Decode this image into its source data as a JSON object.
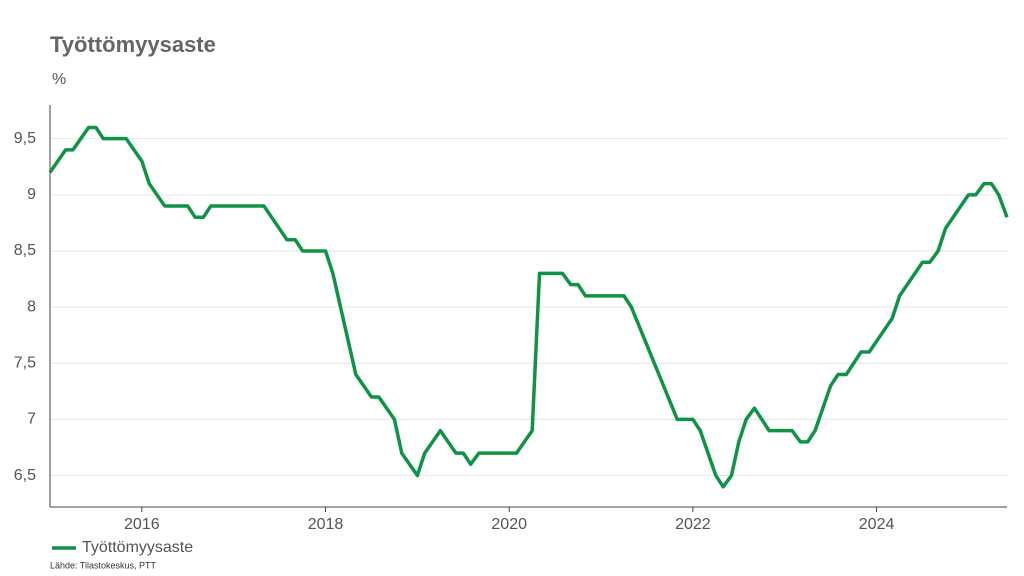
{
  "chart_data": {
    "type": "line",
    "title": "Työttömyysaste",
    "y_unit": "%",
    "source": "Lähde: Tilastokeskus, PTT",
    "grid": true,
    "legend": "bottom-left",
    "x": [
      2015.0,
      2015.17,
      2015.25,
      2015.42,
      2015.5,
      2015.58,
      2015.83,
      2016.0,
      2016.08,
      2016.25,
      2016.5,
      2016.58,
      2016.67,
      2016.75,
      2017.33,
      2017.58,
      2017.67,
      2017.75,
      2018.0,
      2018.08,
      2018.33,
      2018.5,
      2018.58,
      2018.75,
      2018.83,
      2019.0,
      2019.08,
      2019.25,
      2019.42,
      2019.5,
      2019.58,
      2019.67,
      2020.08,
      2020.25,
      2020.33,
      2020.58,
      2020.67,
      2020.75,
      2020.83,
      2021.25,
      2021.33,
      2021.83,
      2022.0,
      2022.08,
      2022.25,
      2022.33,
      2022.42,
      2022.5,
      2022.58,
      2022.67,
      2022.83,
      2023.08,
      2023.17,
      2023.25,
      2023.33,
      2023.5,
      2023.58,
      2023.67,
      2023.83,
      2023.92,
      2024.17,
      2024.25,
      2024.5,
      2024.58,
      2024.67,
      2024.75,
      2025.0,
      2025.08,
      2025.17,
      2025.25,
      2025.33,
      2025.42
    ],
    "series": [
      {
        "name": "Työttömyysaste",
        "color": "#0f9447",
        "values": [
          9.2,
          9.4,
          9.4,
          9.6,
          9.6,
          9.5,
          9.5,
          9.3,
          9.1,
          8.9,
          8.9,
          8.8,
          8.8,
          8.9,
          8.9,
          8.6,
          8.6,
          8.5,
          8.5,
          8.3,
          7.4,
          7.2,
          7.2,
          7.0,
          6.7,
          6.5,
          6.7,
          6.9,
          6.7,
          6.7,
          6.6,
          6.7,
          6.7,
          6.9,
          8.3,
          8.3,
          8.2,
          8.2,
          8.1,
          8.1,
          8.0,
          7.0,
          7.0,
          6.9,
          6.5,
          6.4,
          6.5,
          6.8,
          7.0,
          7.1,
          6.9,
          6.9,
          6.8,
          6.8,
          6.9,
          7.3,
          7.4,
          7.4,
          7.6,
          7.6,
          7.9,
          8.1,
          8.4,
          8.4,
          8.5,
          8.7,
          9.0,
          9.0,
          9.1,
          9.1,
          9.0,
          8.8
        ]
      }
    ],
    "xlim": [
      2015,
      2025.42
    ],
    "xticks": [
      2016,
      2018,
      2020,
      2022,
      2024
    ],
    "ylim": [
      6.22,
      9.8
    ],
    "yticks": [
      {
        "value": 6.5,
        "label": "6,5"
      },
      7,
      {
        "value": 7.5,
        "label": "7,5"
      },
      8,
      {
        "value": 8.5,
        "label": "8,5"
      },
      9,
      {
        "value": 9.5,
        "label": "9,5"
      }
    ]
  }
}
